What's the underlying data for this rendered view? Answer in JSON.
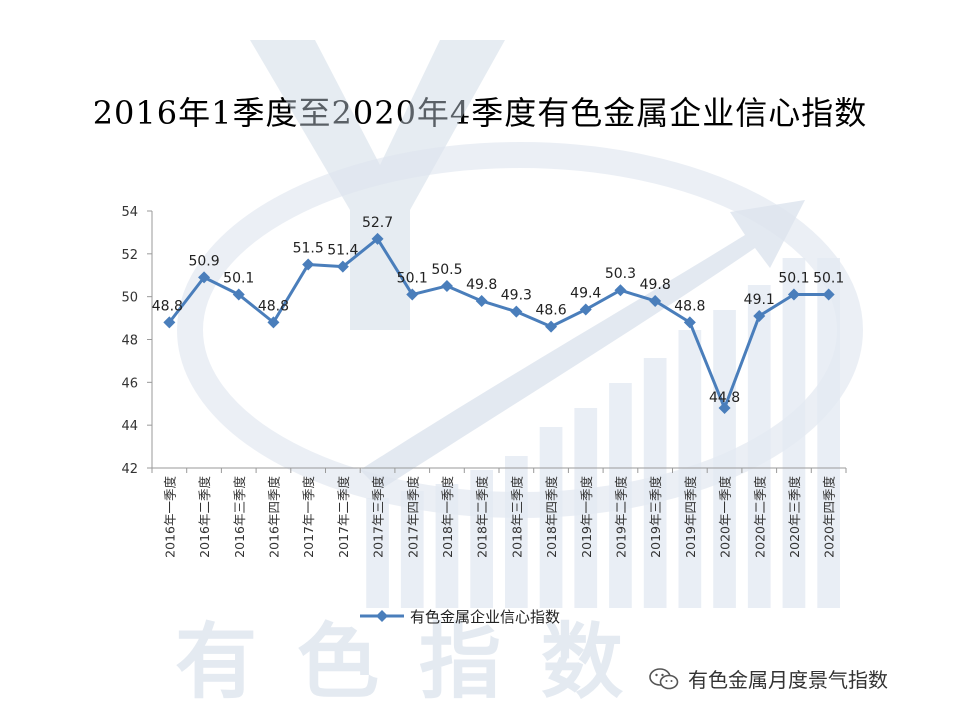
{
  "chart_data": {
    "type": "line",
    "title": "2016年1季度至2020年4季度有色金属企业信心指数",
    "categories": [
      "2016年一季度",
      "2016年二季度",
      "2016年三季度",
      "2016年四季度",
      "2017年一季度",
      "2017年二季度",
      "2017年三季度",
      "2017年四季度",
      "2018年一季度",
      "2018年二季度",
      "2018年三季度",
      "2018年四季度",
      "2019年一季度",
      "2019年二季度",
      "2019年三季度",
      "2019年四季度",
      "2020年一季度",
      "2020年二季度",
      "2020年三季度",
      "2020年四季度"
    ],
    "series": [
      {
        "name": "有色金属企业信心指数",
        "values": [
          48.8,
          50.9,
          50.1,
          48.8,
          51.5,
          51.4,
          52.7,
          50.1,
          50.5,
          49.8,
          49.3,
          48.6,
          49.4,
          50.3,
          49.8,
          48.8,
          44.8,
          49.1,
          50.1,
          50.1
        ]
      }
    ],
    "ylim": [
      42,
      54
    ],
    "yticks": [
      42,
      44,
      46,
      48,
      50,
      52,
      54
    ],
    "legend_position": "bottom",
    "series_color": "#4A7EBB",
    "grid": false
  },
  "footer": {
    "credit": "有色金属月度景气指数"
  }
}
